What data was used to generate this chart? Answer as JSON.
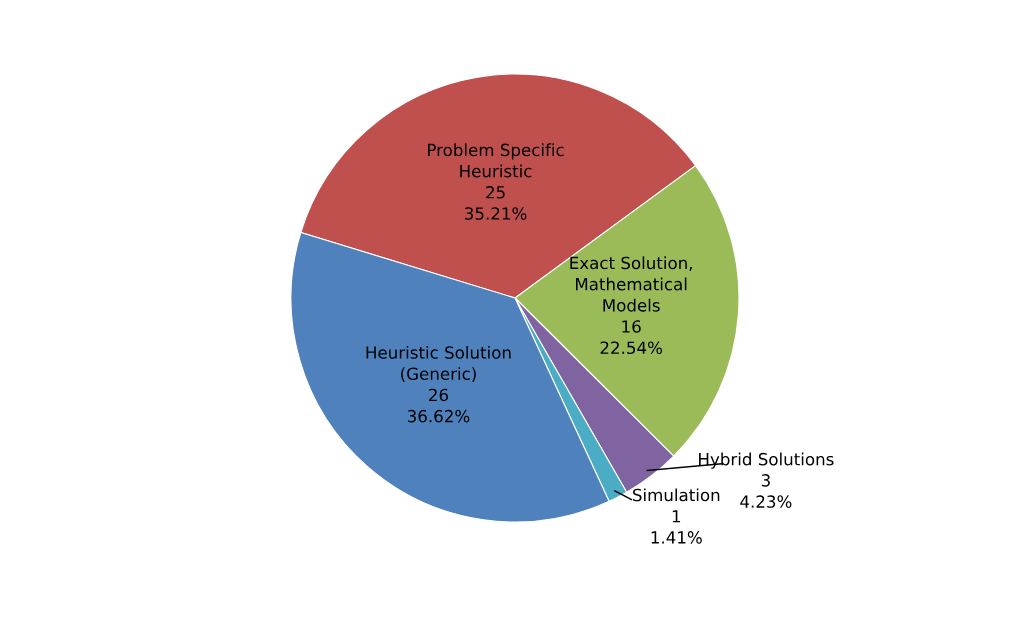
{
  "chart_data": {
    "type": "pie",
    "categories": [
      "Problem Specific\nHeuristic",
      "Exact Solution,\nMathematical\nModels",
      "Hybrid Solutions",
      "Simulation",
      "Heuristic Solution\n(Generic)"
    ],
    "values": [
      25,
      16,
      3,
      1,
      26
    ],
    "value_labels": [
      "25\n35.21%",
      "16\n22.54%",
      "3\n4.23%",
      "1\n1.41%",
      "26\n36.62%"
    ],
    "colors": [
      "#c0504d",
      "#9bbb59",
      "#8064a2",
      "#4bacc6",
      "#4f81bd"
    ]
  }
}
